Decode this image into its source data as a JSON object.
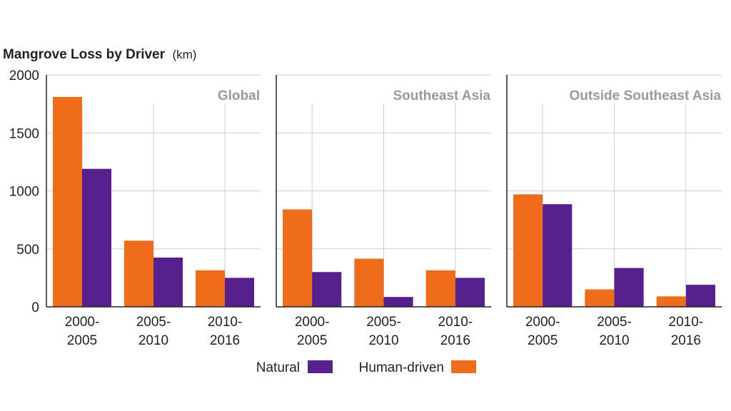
{
  "chart_data": {
    "type": "bar",
    "title": "Mangrove Loss by Driver",
    "unit": "(km)",
    "ylim": [
      0,
      2000
    ],
    "yticks": [
      "0",
      "500",
      "1000",
      "1500",
      "2000"
    ],
    "ytick_values": [
      0,
      500,
      1000,
      1500,
      2000
    ],
    "categories": [
      {
        "line1": "2000-",
        "line2": "2005"
      },
      {
        "line1": "2005-",
        "line2": "2010"
      },
      {
        "line1": "2010-",
        "line2": "2016"
      }
    ],
    "series_colors": {
      "bar_a": "#ee6c1a",
      "bar_b": "#56208d"
    },
    "panels": [
      {
        "name": "Global",
        "bar_a": [
          1810,
          570,
          315
        ],
        "bar_b": [
          1190,
          425,
          250
        ]
      },
      {
        "name": "Southeast Asia",
        "bar_a": [
          840,
          415,
          315
        ],
        "bar_b": [
          300,
          85,
          250
        ]
      },
      {
        "name": "Outside Southeast Asia",
        "bar_a": [
          970,
          150,
          90
        ],
        "bar_b": [
          885,
          335,
          190
        ]
      }
    ],
    "legend": [
      {
        "label": "Natural",
        "color": "#56208d"
      },
      {
        "label": "Human-driven",
        "color": "#ee6c1a"
      }
    ]
  }
}
